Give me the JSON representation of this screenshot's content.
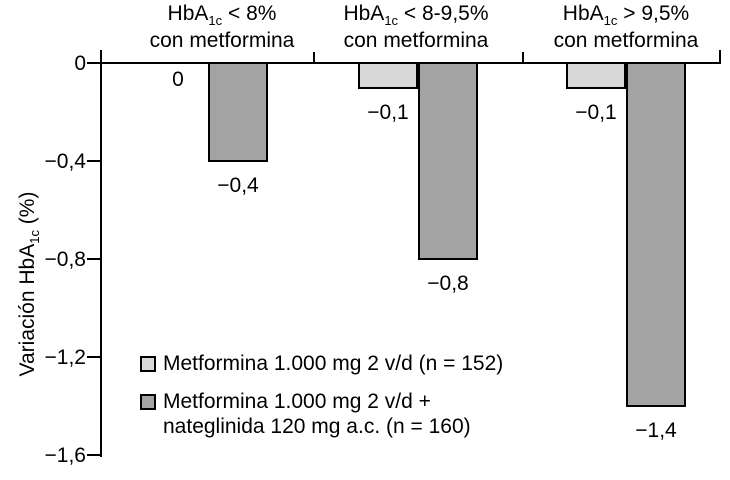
{
  "chart_data": {
    "type": "bar",
    "orientation": "vertical",
    "title": "",
    "xlabel": "",
    "ylabel": "Variación HbA1c (%)",
    "ylabel_parts": {
      "pre": "Variación HbA",
      "sub": "1c",
      "post": " (%)"
    },
    "ylim": [
      -1.6,
      0
    ],
    "grid": false,
    "yticks": [
      0,
      -0.4,
      -0.8,
      -1.2,
      -1.6
    ],
    "ytick_labels": [
      "0",
      "−0,4",
      "−0,8",
      "−1,2",
      "−1,6"
    ],
    "categories": [
      {
        "line1_pre": "HbA",
        "line1_sub": "1c",
        "line1_post": " < 8%",
        "line2": "con metformina"
      },
      {
        "line1_pre": "HbA",
        "line1_sub": "1c",
        "line1_post": " < 8-9,5%",
        "line2": "con metformina"
      },
      {
        "line1_pre": "HbA",
        "line1_sub": "1c",
        "line1_post": " > 9,5%",
        "line2": "con metformina"
      }
    ],
    "series": [
      {
        "name": "Metformina 1.000 mg 2 v/d (n = 152)",
        "color": "#d8d8d8",
        "values": [
          0,
          -0.1,
          -0.1
        ],
        "labels": [
          "0",
          "−0,1",
          "−0,1"
        ]
      },
      {
        "name": "Metformina 1.000 mg 2 v/d + nateglinida 120 mg a.c. (n = 160)",
        "color": "#a3a3a3",
        "values": [
          -0.4,
          -0.8,
          -1.4
        ],
        "labels": [
          "−0,4",
          "−0,8",
          "−1,4"
        ]
      }
    ],
    "legend_position": "inside-bottom-left",
    "legend": [
      {
        "swatch_color": "#d8d8d8",
        "lines": [
          "Metformina 1.000 mg 2 v/d (n = 152)"
        ]
      },
      {
        "swatch_color": "#a3a3a3",
        "lines": [
          "Metformina 1.000 mg 2 v/d +",
          "nateglinida 120 mg a.c. (n = 160)"
        ]
      }
    ]
  }
}
